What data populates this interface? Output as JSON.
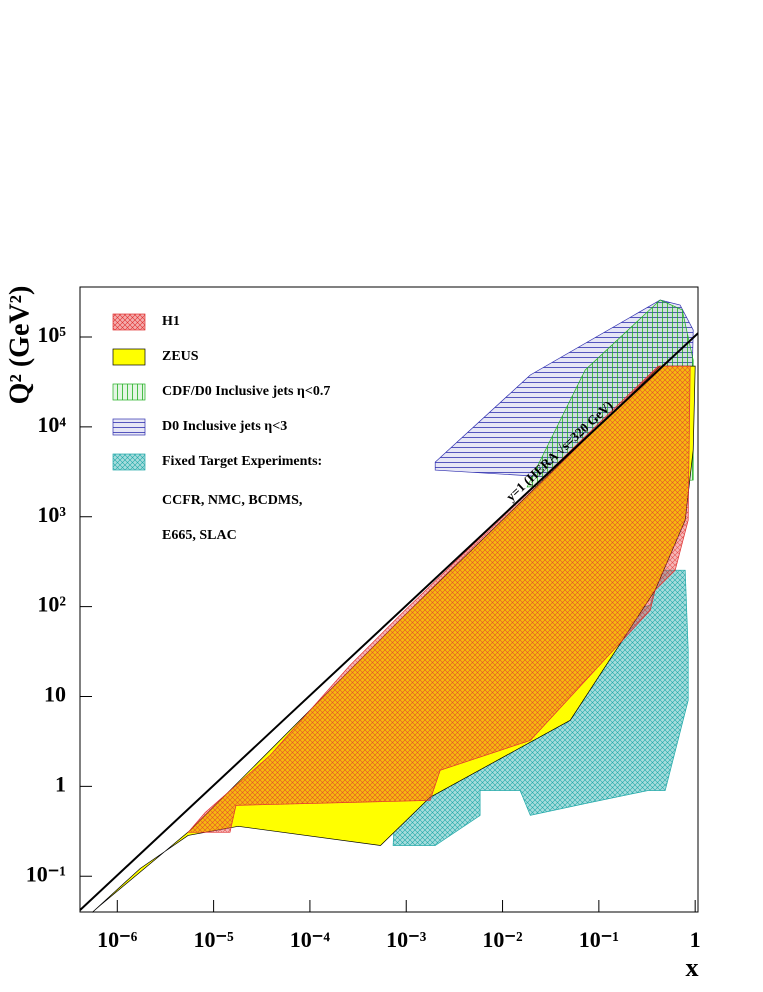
{
  "chart_data": {
    "type": "region",
    "xscale": "log",
    "yscale": "log",
    "xlim": [
      4.1e-07,
      1.07
    ],
    "ylim": [
      0.04,
      360000
    ],
    "xticks": [
      {
        "value": 1e-06,
        "label": "10⁻⁶"
      },
      {
        "value": 1e-05,
        "label": "10⁻⁵"
      },
      {
        "value": 0.0001,
        "label": "10⁻⁴"
      },
      {
        "value": 0.001,
        "label": "10⁻³"
      },
      {
        "value": 0.01,
        "label": "10⁻²"
      },
      {
        "value": 0.1,
        "label": "10⁻¹"
      },
      1
    ],
    "yticks": [
      {
        "value": 0.1,
        "label": "10⁻¹"
      },
      1,
      10,
      {
        "value": 100,
        "label": "10²"
      },
      {
        "value": 1000,
        "label": "10³"
      },
      {
        "value": 10000,
        "label": "10⁴"
      },
      {
        "value": 100000,
        "label": "10⁵"
      }
    ],
    "xlabel": "x",
    "ylabel": "Q² (GeV²)",
    "legend": "upper left",
    "series": [
      {
        "name": "H1",
        "color": "#e03030",
        "hatch": "cross",
        "x": [
          5.43e-06,
          8.2e-06,
          3.86e-05,
          0.00026,
          0.00097,
          0.413,
          0.887,
          0.846,
          0.62,
          0.384,
          0.341,
          0.0194,
          0.00225,
          0.00177,
          1.71e-05,
          1.48e-05
        ],
        "values": [
          0.308,
          0.513,
          2.21,
          22.2,
          91,
          47500,
          47500,
          916,
          254,
          152,
          91,
          3.25,
          1.51,
          0.698,
          0.614,
          0.308
        ]
      },
      {
        "name": "ZEUS",
        "color": "#ffff00",
        "hatch": "solid",
        "x": [
          5.47e-07,
          1.73e-06,
          5.43e-06,
          1.8e-05,
          0.00054,
          0.00177,
          0.0504,
          0.384,
          0.787,
          0.953,
          1,
          0.433,
          0.00086,
          5.7e-06,
          6.63e-07
        ],
        "values": [
          0.0395,
          0.122,
          0.285,
          0.359,
          0.22,
          0.755,
          5.43,
          152,
          916,
          5520,
          47500,
          47500,
          71,
          0.324,
          0.0473
        ]
      },
      {
        "name": "CDF/D0   Inclusive jets η<0.7",
        "color": "#20b020",
        "hatch": "vertical",
        "x": [
          0.018,
          0.0721,
          0.433,
          0.733,
          0.953,
          0.953
        ],
        "values": [
          2140,
          42900,
          258000,
          200000,
          55500,
          2560
        ]
      },
      {
        "name": "D0  Inclusive jets η<3",
        "color": "#3030b0",
        "hatch": "horizontal",
        "x": [
          0.002,
          0.002,
          0.0194,
          0.433,
          0.698,
          0.953,
          0.887,
          0.103
        ],
        "values": [
          3300,
          4060,
          37800,
          258000,
          227000,
          120000,
          3300,
          2560
        ]
      },
      {
        "name": "Fixed Target Experiments:",
        "color": "#20a8a8",
        "hatch": "cross",
        "x": [
          0.00073,
          0.00077,
          0.00177,
          0.00585,
          0.0396,
          0.103,
          0.341,
          0.433,
          0.787,
          0.846,
          0.846,
          0.488,
          0.325,
          0.0738,
          0.0194,
          0.0152,
          0.00585,
          0.00585,
          0.002
        ],
        "values": [
          0.22,
          0.698,
          1.71,
          1.85,
          11.7,
          71,
          104,
          254,
          254,
          32.7,
          9.07,
          0.9,
          0.9,
          0.647,
          0.475,
          0.9,
          0.9,
          0.475,
          0.22
        ]
      }
    ],
    "legend_notes": [
      "CCFR, NMC, BCDMS,",
      "E665, SLAC"
    ],
    "kinematic_limit": {
      "label": "y=1 (HERA √s=320 GeV)",
      "color": "#000000",
      "x": [
        4.1e-07,
        1.07
      ],
      "values": [
        0.042,
        110000
      ]
    }
  }
}
